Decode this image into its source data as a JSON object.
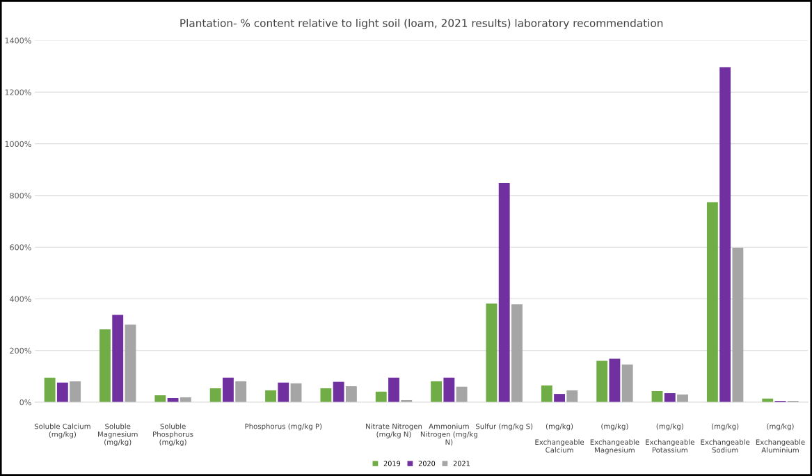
{
  "chart_data": {
    "type": "bar",
    "title": "Plantation- % content relative to light soil (loam, 2021 results) laboratory recommendation",
    "categories": [
      "Soluble Calcium\n(mg/kg)",
      "Soluble\nMagnesium\n(mg/kg)",
      "Soluble\nPhosphorus\n(mg/kg)",
      null,
      "Phosphorus (mg/kg P)",
      null,
      "Nitrate Nitrogen\n(mg/kg N)",
      "Ammonium\nNitrogen (mg/kg\nN)",
      "Sulfur (mg/kg S)",
      "(mg/kg)\n\nExchangeable\nCalcium",
      "(mg/kg)\n\nExchangeable\nMagnesium",
      "(mg/kg)\n\nExchangeable\nPotassium",
      "(mg/kg)\n\nExchangeable\nSodium",
      "(mg/kg)\n\nExchangeable\nAluminium"
    ],
    "series": [
      {
        "name": "2019",
        "color": "#70ad47",
        "values": [
          95,
          282,
          27,
          54,
          46,
          54,
          41,
          81,
          382,
          65,
          160,
          43,
          774,
          14
        ]
      },
      {
        "name": "2020",
        "color": "#7030a0",
        "values": [
          76,
          338,
          16,
          95,
          76,
          79,
          95,
          95,
          848,
          32,
          168,
          35,
          1297,
          5
        ]
      },
      {
        "name": "2021",
        "color": "#a5a5a5",
        "values": [
          81,
          300,
          19,
          81,
          73,
          62,
          8,
          60,
          379,
          46,
          146,
          30,
          598,
          5
        ]
      }
    ],
    "ylim": [
      0,
      1400
    ],
    "yticks": [
      {
        "value": 0,
        "label": "0%"
      },
      {
        "value": 200,
        "label": "200%"
      },
      {
        "value": 400,
        "label": "400%"
      },
      {
        "value": 600,
        "label": "600%"
      },
      {
        "value": 800,
        "label": "800%"
      },
      {
        "value": 1000,
        "label": "1000%"
      },
      {
        "value": 1200,
        "label": "1200%"
      },
      {
        "value": 1400,
        "label": "1400%"
      }
    ],
    "grid": "y",
    "legend": "bottom"
  }
}
